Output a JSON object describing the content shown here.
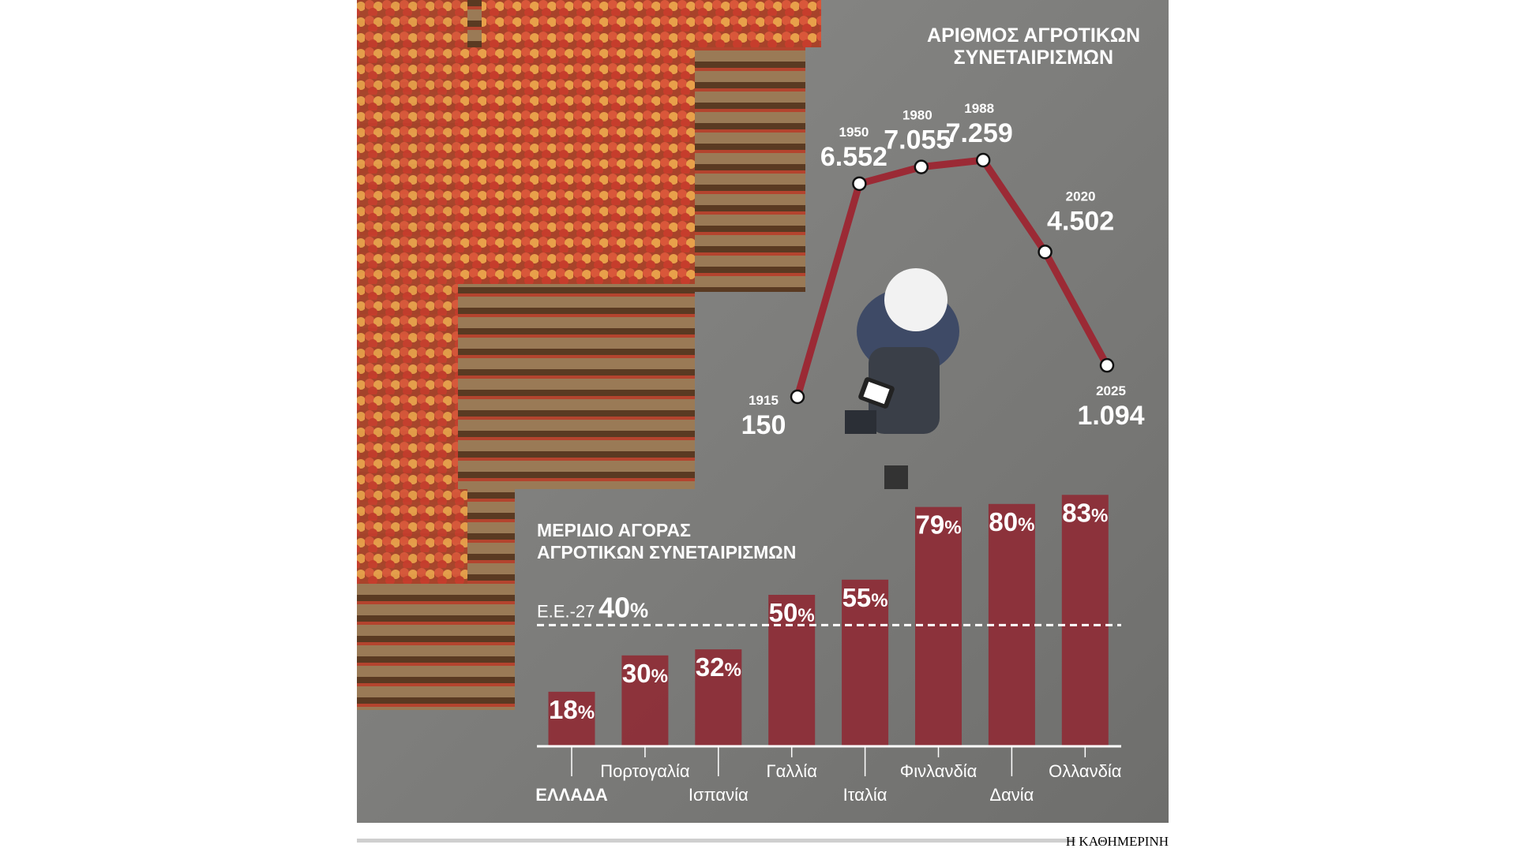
{
  "colors": {
    "bar": "#8e2c36",
    "line": "#9b2a35",
    "text": "#ffffff",
    "background": "#8a8a88"
  },
  "footer": {
    "logo": "Η ΚΑΘΗΜΕΡΙΝΗ"
  },
  "chart_data": [
    {
      "type": "line",
      "title": "ΑΡΙΘΜΟΣ ΑΓΡΟΤΙΚΩΝ ΣΥΝΕΤΑΙΡΙΣΜΩΝ",
      "title_lines": [
        "ΑΡΙΘΜΟΣ ΑΓΡΟΤΙΚΩΝ",
        "ΣΥΝΕΤΑΙΡΙΣΜΩΝ"
      ],
      "x": [
        "1915",
        "1950",
        "1980",
        "1988",
        "2020",
        "2025"
      ],
      "values": [
        150,
        6552,
        7055,
        7259,
        4502,
        1094
      ],
      "labels": [
        "150",
        "6.552",
        "7.055",
        "7.259",
        "4.502",
        "1.094"
      ],
      "grid": false
    },
    {
      "type": "bar",
      "title": "ΜΕΡΙΔΙΟ ΑΓΟΡΑΣ ΑΓΡΟΤΙΚΩΝ ΣΥΝΕΤΑΙΡΙΣΜΩΝ",
      "title_lines": [
        "ΜΕΡΙΔΙΟ ΑΓΟΡΑΣ",
        "ΑΓΡΟΤΙΚΩΝ ΣΥΝΕΤΑΙΡΙΣΜΩΝ"
      ],
      "categories": [
        "ΕΛΛΑΔΑ",
        "Πορτογαλία",
        "Ισπανία",
        "Γαλλία",
        "Ιταλία",
        "Φινλανδία",
        "Δανία",
        "Ολλανδία"
      ],
      "values": [
        18,
        30,
        32,
        50,
        55,
        79,
        80,
        83
      ],
      "unit": "%",
      "reference_line": {
        "label": "Ε.Ε.-27",
        "value": 40,
        "value_label": "40",
        "style": "dashed"
      },
      "ylim": [
        0,
        83
      ],
      "grid": false
    }
  ]
}
